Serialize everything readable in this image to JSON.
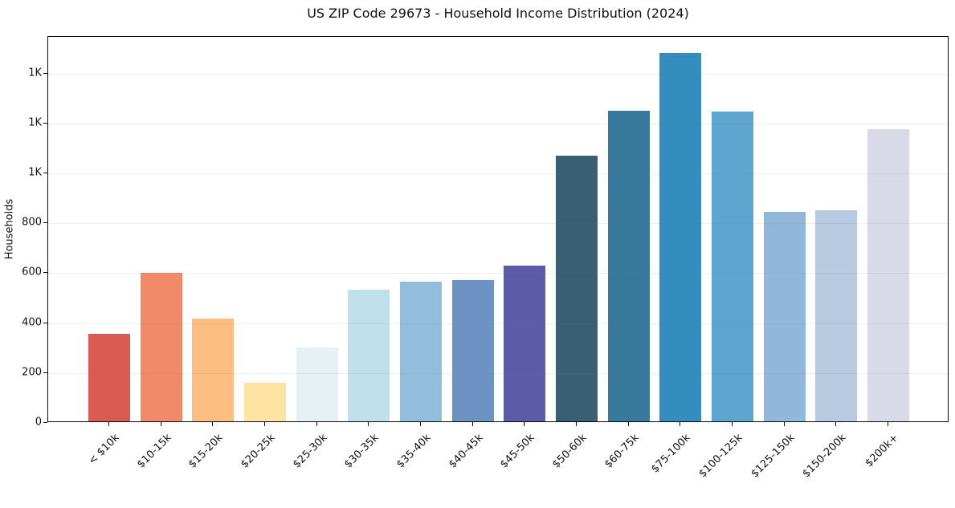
{
  "chart_data": {
    "type": "bar",
    "title": "US ZIP Code 29673 - Household Income Distribution (2024)",
    "xlabel": "",
    "ylabel": "Households",
    "categories": [
      "< $10k",
      "$10-15k",
      "$15-20k",
      "$20-25k",
      "$25-30k",
      "$30-35k",
      "$35-40k",
      "$40-45k",
      "$45-50k",
      "$50-60k",
      "$60-75k",
      "$75-100k",
      "$100-125k",
      "$125-150k",
      "$150-200k",
      "$200k+"
    ],
    "values": [
      350,
      595,
      412,
      155,
      295,
      527,
      560,
      567,
      625,
      1065,
      1245,
      1475,
      1240,
      838,
      845,
      1170
    ],
    "bar_colors": [
      "#d95b52",
      "#f08a68",
      "#fcbd80",
      "#fde4a2",
      "#e6f1f5",
      "#bfe0ea",
      "#92bedb",
      "#6c93c3",
      "#5c5ba7",
      "#3a5f72",
      "#377a9e",
      "#358dbf",
      "#5ea6cf",
      "#91b7da",
      "#b7cae0",
      "#d8dae7"
    ],
    "ylim": [
      0,
      1547
    ],
    "yticks": [
      {
        "value": 0,
        "label": "0"
      },
      {
        "value": 200,
        "label": "200"
      },
      {
        "value": 400,
        "label": "400"
      },
      {
        "value": 600,
        "label": "600"
      },
      {
        "value": 800,
        "label": "800"
      },
      {
        "value": 1000,
        "label": "1K"
      },
      {
        "value": 1200,
        "label": "1K"
      },
      {
        "value": 1400,
        "label": "1K"
      }
    ],
    "grid": "horizontal-gridlines-on",
    "legend": "none",
    "background_color": "#ffffff",
    "axis_color": "#0a0a0a"
  }
}
